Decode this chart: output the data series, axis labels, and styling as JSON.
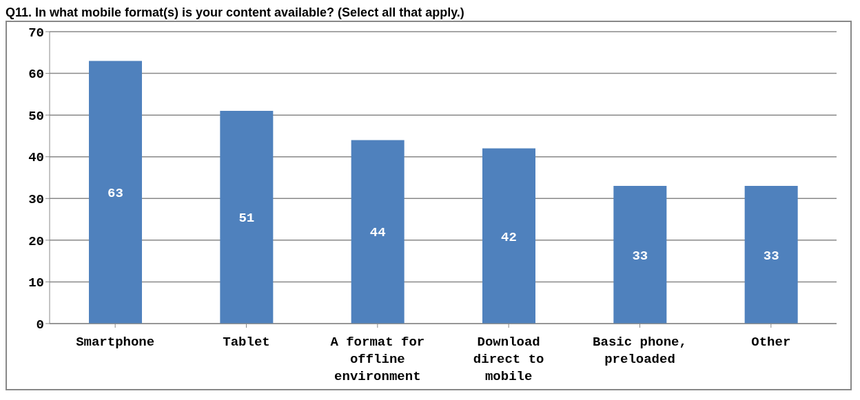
{
  "chart_data": {
    "type": "bar",
    "title": "Q11. In what mobile format(s) is your content available? (Select all that apply.)",
    "categories": [
      "Smartphone",
      "Tablet",
      "A format for offline environment",
      "Download direct to mobile",
      "Basic phone, preloaded",
      "Other"
    ],
    "values": [
      63,
      51,
      44,
      42,
      33,
      33
    ],
    "color": "#4f81bd",
    "ylim": [
      0,
      70
    ],
    "yticks": [
      0,
      10,
      20,
      30,
      40,
      50,
      60,
      70
    ],
    "grid": "y",
    "data_labels": true
  }
}
